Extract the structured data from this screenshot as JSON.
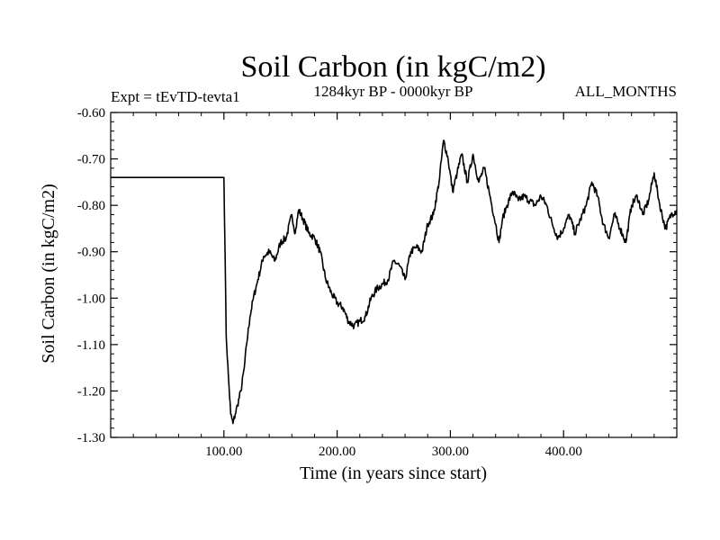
{
  "chart_data": {
    "type": "line",
    "title": "Soil Carbon (in kgC/m2)",
    "subtitle_left": "Expt = tEvTD-tevta1",
    "subtitle_center": "1284kyr BP - 0000kyr BP",
    "subtitle_right": "ALL_MONTHS",
    "xlabel": "Time (in years since start)",
    "ylabel": "Soil Carbon (in kgC/m2)",
    "xlim": [
      0,
      500
    ],
    "ylim": [
      -1.3,
      -0.6
    ],
    "x_ticks": [
      100,
      200,
      300,
      400
    ],
    "x_tick_labels": [
      "100.00",
      "200.00",
      "300.00",
      "400.00"
    ],
    "y_ticks": [
      -0.6,
      -0.7,
      -0.8,
      -0.9,
      -1.0,
      -1.1,
      -1.2,
      -1.3
    ],
    "y_tick_labels": [
      "-0.60",
      "-0.70",
      "-0.80",
      "-0.90",
      "-1.00",
      "-1.10",
      "-1.20",
      "-1.30"
    ],
    "series": [
      {
        "name": "Soil Carbon",
        "color": "#000000",
        "x": [
          0,
          100,
          101,
          102,
          104,
          106,
          108,
          110,
          112,
          115,
          118,
          120,
          123,
          126,
          130,
          135,
          140,
          145,
          150,
          155,
          160,
          163,
          166,
          170,
          175,
          180,
          185,
          190,
          195,
          200,
          205,
          210,
          215,
          220,
          225,
          230,
          235,
          240,
          245,
          250,
          255,
          260,
          265,
          270,
          275,
          280,
          285,
          290,
          294,
          298,
          302,
          306,
          310,
          315,
          320,
          325,
          330,
          335,
          340,
          343,
          346,
          350,
          355,
          360,
          365,
          370,
          375,
          380,
          385,
          390,
          395,
          400,
          405,
          410,
          415,
          420,
          425,
          430,
          435,
          440,
          445,
          450,
          455,
          460,
          465,
          470,
          475,
          480,
          485,
          490,
          495,
          500
        ],
        "values": [
          -0.74,
          -0.74,
          -0.9,
          -1.08,
          -1.17,
          -1.25,
          -1.27,
          -1.25,
          -1.23,
          -1.2,
          -1.15,
          -1.1,
          -1.04,
          -1.0,
          -0.96,
          -0.91,
          -0.9,
          -0.92,
          -0.88,
          -0.87,
          -0.82,
          -0.86,
          -0.81,
          -0.83,
          -0.86,
          -0.87,
          -0.9,
          -0.96,
          -0.99,
          -1.01,
          -1.02,
          -1.05,
          -1.06,
          -1.05,
          -1.04,
          -1.0,
          -0.98,
          -0.97,
          -0.96,
          -0.92,
          -0.93,
          -0.96,
          -0.9,
          -0.89,
          -0.9,
          -0.84,
          -0.82,
          -0.75,
          -0.66,
          -0.7,
          -0.77,
          -0.73,
          -0.69,
          -0.75,
          -0.69,
          -0.75,
          -0.72,
          -0.78,
          -0.84,
          -0.88,
          -0.83,
          -0.8,
          -0.77,
          -0.79,
          -0.78,
          -0.79,
          -0.8,
          -0.78,
          -0.8,
          -0.84,
          -0.87,
          -0.85,
          -0.82,
          -0.86,
          -0.83,
          -0.8,
          -0.75,
          -0.78,
          -0.84,
          -0.87,
          -0.82,
          -0.85,
          -0.88,
          -0.8,
          -0.78,
          -0.82,
          -0.79,
          -0.73,
          -0.8,
          -0.85,
          -0.82,
          -0.81
        ]
      }
    ]
  }
}
